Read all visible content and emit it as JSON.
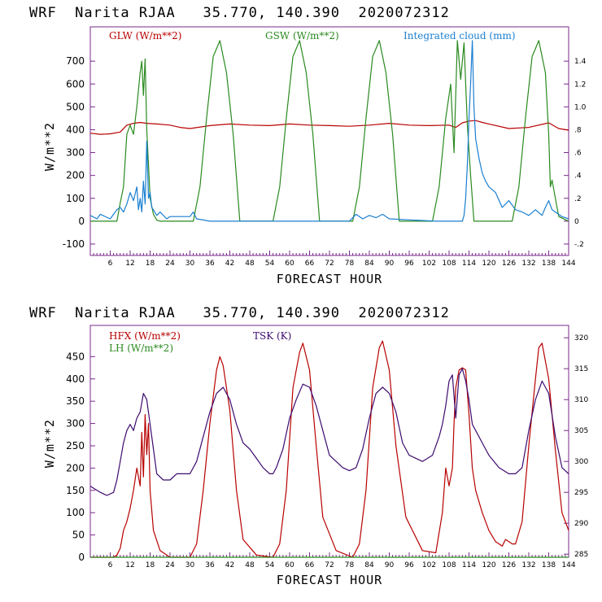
{
  "colors": {
    "glw": "#b80000",
    "gsw": "#2a8a1f",
    "cloud": "#1a7fd0",
    "hfx": "#b80000",
    "lh": "#2a8a1f",
    "tsk": "#3c0a6e",
    "frame": "#7a2a8a"
  },
  "chart_data": [
    {
      "type": "line",
      "title": "WRF  Narita RJAA   35.770, 140.390  2020072312",
      "xlabel": "FORECAST HOUR",
      "ylabel": "W/m**2",
      "xlim": [
        0,
        144
      ],
      "ylim": [
        -150,
        850
      ],
      "y2lim": [
        -0.3,
        1.7
      ],
      "xticks": [
        6,
        12,
        18,
        24,
        30,
        36,
        42,
        48,
        54,
        60,
        66,
        72,
        78,
        84,
        90,
        96,
        102,
        108,
        114,
        120,
        126,
        132,
        138,
        144
      ],
      "yticks": [
        -100,
        0,
        100,
        200,
        300,
        400,
        500,
        600,
        700
      ],
      "y2ticks": [
        -0.2,
        0,
        0.2,
        0.4,
        0.6,
        0.8,
        1.0,
        1.2,
        1.4
      ],
      "y2ticklabels": [
        "-.2",
        "0",
        ".2",
        ".4",
        ".6",
        ".8",
        "1.0",
        "1.2",
        "1.4"
      ],
      "legend": [
        "GLW (W/m**2)",
        "GSW (W/m**2)",
        "Integrated cloud (mm)"
      ],
      "series": [
        {
          "name": "GLW (W/m**2)",
          "axis": "left",
          "x": [
            0,
            3,
            6,
            9,
            11,
            13,
            15,
            17,
            20,
            24,
            27,
            30,
            36,
            42,
            48,
            54,
            60,
            66,
            72,
            78,
            84,
            90,
            96,
            102,
            108,
            110,
            112,
            114,
            116,
            118,
            120,
            126,
            132,
            138,
            141,
            144
          ],
          "y": [
            385,
            380,
            382,
            390,
            420,
            428,
            432,
            428,
            425,
            420,
            410,
            405,
            418,
            425,
            420,
            418,
            425,
            420,
            418,
            415,
            420,
            428,
            420,
            418,
            420,
            410,
            430,
            438,
            440,
            432,
            425,
            405,
            410,
            430,
            405,
            398
          ]
        },
        {
          "name": "GSW (W/m**2)",
          "axis": "left",
          "x": [
            0,
            8,
            9,
            10,
            11,
            12,
            13,
            14,
            15,
            15.5,
            16,
            16.5,
            17,
            17.5,
            18,
            19,
            20,
            21,
            31,
            33,
            35,
            37,
            39,
            41,
            43,
            45,
            55,
            57,
            59,
            61,
            63,
            65,
            67,
            69,
            79,
            81,
            83,
            85,
            87,
            89,
            91,
            93,
            103,
            105,
            107,
            108.5,
            109.5,
            110.5,
            111.5,
            112.5,
            113.5,
            114.5,
            115.5,
            127,
            129,
            131,
            133,
            135,
            137,
            138,
            138.5,
            139,
            140,
            141,
            144
          ],
          "y": [
            0,
            0,
            80,
            150,
            380,
            420,
            380,
            500,
            650,
            700,
            550,
            710,
            400,
            250,
            100,
            30,
            5,
            0,
            0,
            150,
            450,
            720,
            790,
            650,
            380,
            0,
            0,
            150,
            450,
            720,
            790,
            650,
            380,
            0,
            0,
            150,
            450,
            720,
            790,
            650,
            380,
            0,
            0,
            150,
            450,
            600,
            300,
            790,
            620,
            780,
            420,
            200,
            0,
            0,
            150,
            450,
            720,
            790,
            650,
            380,
            150,
            180,
            100,
            20,
            0
          ]
        },
        {
          "name": "Integrated cloud (mm)",
          "axis": "right",
          "x": [
            0,
            2,
            3,
            6,
            8,
            9,
            10,
            11,
            12,
            13,
            14,
            14.5,
            15,
            15.5,
            16,
            16.5,
            17,
            17.5,
            18,
            18.5,
            19,
            20,
            21,
            23,
            24,
            30,
            31,
            32,
            34,
            36,
            40,
            50,
            60,
            78,
            80,
            82,
            84,
            86,
            88,
            90,
            104,
            108,
            112,
            112.5,
            113,
            113.5,
            114,
            114.5,
            115,
            115.5,
            116,
            117,
            118,
            119,
            120,
            122,
            124,
            126,
            128,
            130,
            132,
            134,
            136,
            137,
            138,
            139,
            140,
            142,
            144
          ],
          "y": [
            0.05,
            0.02,
            0.06,
            0.02,
            0.1,
            0.12,
            0.08,
            0.15,
            0.25,
            0.18,
            0.3,
            0.1,
            0.2,
            0.08,
            0.35,
            0.15,
            0.7,
            0.2,
            0.25,
            0.12,
            0.1,
            0.05,
            0.08,
            0.02,
            0.04,
            0.04,
            0.08,
            0.02,
            0.01,
            0,
            0,
            0,
            0,
            0,
            0.06,
            0.02,
            0.05,
            0.03,
            0.06,
            0.02,
            0,
            0,
            0,
            0.05,
            0.2,
            0.5,
            0.9,
            1.2,
            1.58,
            1.0,
            0.72,
            0.55,
            0.42,
            0.35,
            0.3,
            0.25,
            0.12,
            0.18,
            0.1,
            0.08,
            0.05,
            0.1,
            0.05,
            0.12,
            0.18,
            0.1,
            0.08,
            0.04,
            0.02
          ]
        }
      ]
    },
    {
      "type": "line",
      "title": "WRF  Narita RJAA   35.770, 140.390  2020072312",
      "xlabel": "FORECAST HOUR",
      "ylabel": "W/m**2",
      "xlim": [
        0,
        144
      ],
      "ylim": [
        0,
        520
      ],
      "y2lim": [
        284.5,
        322
      ],
      "xticks": [
        6,
        12,
        18,
        24,
        30,
        36,
        42,
        48,
        54,
        60,
        66,
        72,
        78,
        84,
        90,
        96,
        102,
        108,
        114,
        120,
        126,
        132,
        138,
        144
      ],
      "yticks": [
        0,
        50,
        100,
        150,
        200,
        250,
        300,
        350,
        400,
        450
      ],
      "y2ticks": [
        285,
        290,
        295,
        300,
        305,
        310,
        315,
        320
      ],
      "legend": [
        "HFX (W/m**2)",
        "LH (W/m**2)",
        "TSK (K)"
      ],
      "series": [
        {
          "name": "HFX (W/m**2)",
          "axis": "left",
          "x": [
            0,
            7,
            8,
            9,
            10,
            11,
            12,
            13,
            14,
            15,
            15.5,
            16,
            16.5,
            17,
            17.5,
            18,
            19,
            21,
            24,
            30,
            32,
            34,
            36,
            38,
            39,
            40,
            42,
            44,
            46,
            50,
            55,
            57,
            59,
            61,
            63,
            64,
            66,
            68,
            70,
            74,
            79,
            81,
            83,
            85,
            87,
            88,
            90,
            92,
            95,
            100,
            104,
            106,
            107,
            108,
            109,
            109.5,
            110,
            111,
            112,
            113,
            114,
            115,
            116,
            118,
            120,
            122,
            124,
            125,
            126,
            127,
            128,
            130,
            132,
            134,
            135,
            136,
            138,
            140,
            142,
            144
          ],
          "y": [
            0,
            0,
            5,
            20,
            60,
            80,
            110,
            150,
            200,
            160,
            280,
            180,
            320,
            230,
            300,
            150,
            60,
            15,
            0,
            0,
            30,
            150,
            300,
            420,
            450,
            430,
            330,
            150,
            40,
            5,
            0,
            30,
            150,
            380,
            460,
            480,
            420,
            250,
            90,
            15,
            0,
            30,
            150,
            380,
            470,
            485,
            420,
            250,
            90,
            15,
            10,
            100,
            200,
            160,
            200,
            300,
            380,
            420,
            425,
            420,
            320,
            200,
            150,
            100,
            60,
            35,
            25,
            40,
            35,
            30,
            30,
            80,
            250,
            400,
            470,
            480,
            400,
            240,
            100,
            60
          ]
        },
        {
          "name": "LH (W/m**2)",
          "axis": "left",
          "x": [
            0,
            144
          ],
          "y": [
            0,
            0
          ]
        },
        {
          "name": "TSK (K)",
          "axis": "right",
          "x": [
            0,
            3,
            5,
            7,
            8,
            9,
            10,
            11,
            12,
            13,
            14,
            15,
            16,
            17,
            18,
            19,
            20,
            22,
            24,
            26,
            30,
            32,
            34,
            36,
            38,
            40,
            42,
            44,
            46,
            48,
            50,
            52,
            54,
            55,
            56,
            58,
            60,
            62,
            64,
            66,
            68,
            70,
            72,
            76,
            78,
            80,
            82,
            84,
            86,
            88,
            90,
            92,
            94,
            96,
            100,
            103,
            105,
            106,
            107,
            108,
            109,
            110,
            111,
            112,
            113,
            114,
            115,
            116,
            118,
            120,
            123,
            126,
            128,
            130,
            132,
            134,
            136,
            138,
            140,
            142,
            144
          ],
          "y": [
            296,
            295,
            294.5,
            295,
            297,
            300,
            303,
            305,
            306,
            305,
            307,
            308,
            311,
            310,
            306,
            302,
            298,
            297,
            297,
            298,
            298,
            300,
            304,
            308,
            311,
            312,
            310,
            306,
            303,
            302,
            300.5,
            299,
            298,
            298,
            299,
            302,
            307,
            310,
            312.5,
            312,
            309,
            305,
            301,
            299,
            298.5,
            299,
            302,
            307,
            311,
            312,
            311,
            308,
            303,
            301,
            300,
            301,
            304,
            306,
            309,
            313,
            314,
            307,
            314,
            315,
            313,
            310,
            306,
            305,
            303,
            301,
            299,
            298,
            298,
            299,
            305,
            310,
            313,
            311,
            304,
            299,
            298
          ]
        }
      ]
    }
  ]
}
